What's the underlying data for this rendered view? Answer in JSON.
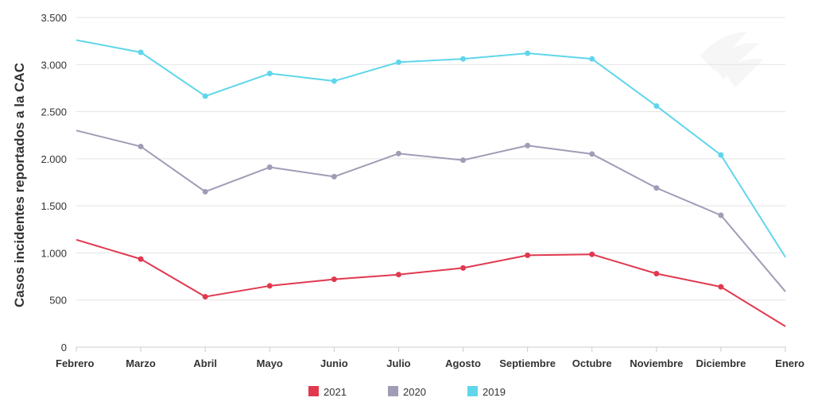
{
  "chart_data": {
    "type": "line",
    "ylabel": "Casos incidentes reportados a la CAC",
    "xlabel": "",
    "categories": [
      "Febrero",
      "Marzo",
      "Abril",
      "Mayo",
      "Junio",
      "Julio",
      "Agosto",
      "Septiembre",
      "Octubre",
      "Noviembre",
      "Diciembre",
      "Enero"
    ],
    "ylim": [
      0,
      3500
    ],
    "yticks": [
      0,
      500,
      1000,
      1500,
      2000,
      2500,
      3000,
      3500
    ],
    "ytick_labels": [
      "0",
      "500",
      "1.000",
      "1.500",
      "2.000",
      "2.500",
      "3.000",
      "3.500"
    ],
    "grid": true,
    "legend_position": "bottom-center",
    "series": [
      {
        "name": "2021",
        "color": "#e0394f",
        "values": [
          1140,
          935,
          535,
          650,
          720,
          770,
          840,
          975,
          985,
          780,
          640,
          220
        ]
      },
      {
        "name": "2020",
        "color": "#a19cb6",
        "values": [
          2300,
          2130,
          1650,
          1910,
          1810,
          2055,
          1985,
          2140,
          2050,
          1690,
          1400,
          590
        ]
      },
      {
        "name": "2019",
        "color": "#5fd6ea",
        "values": [
          3260,
          3130,
          2665,
          2905,
          2825,
          3025,
          3060,
          3120,
          3060,
          2560,
          2040,
          955
        ]
      }
    ]
  }
}
